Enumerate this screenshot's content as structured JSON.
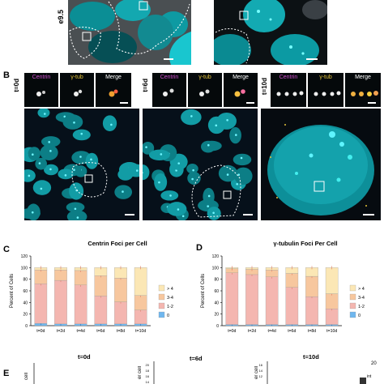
{
  "panelA": {
    "stage_label": "e9.5"
  },
  "panelB": {
    "label": "B",
    "rows": [
      {
        "time": "t=0d",
        "insets": [
          "Centrin",
          "γ-tub",
          "Merge"
        ]
      },
      {
        "time": "t=6d",
        "insets": [
          "Centrin",
          "γ-tub",
          "Merge"
        ]
      },
      {
        "time": "t=10d",
        "insets": [
          "Centrin",
          "γ-tub",
          "Merge"
        ]
      }
    ]
  },
  "colors": {
    "centrin": "#d24fd0",
    "gtub": "#e2c23a",
    "bin0": "#6fb7ee",
    "bin12": "#f4b6b0",
    "bin34": "#f7c79e",
    "bin4plus": "#fbe7b5",
    "nuclei": "#19c6cf"
  },
  "panelC": {
    "label": "C"
  },
  "panelD": {
    "label": "D"
  },
  "panelE": {
    "label": "E",
    "times": [
      "t=0d",
      "t=6d",
      "t=10d"
    ],
    "colorbar_max": "20",
    "colorbar_min": "int",
    "axis_partial": "er cell",
    "axis_partial2": "cell"
  },
  "chart_data": [
    {
      "type": "bar",
      "title": "Centrin Foci per Cell",
      "ylabel": "Percent of Cells",
      "ylim": [
        0,
        120
      ],
      "yticks": [
        "0",
        "20",
        "40",
        "60",
        "80",
        "100",
        "120"
      ],
      "categories": [
        "t=0d",
        "t=2d",
        "t=4d",
        "t=6d",
        "t=8d",
        "t=10d"
      ],
      "stacked": true,
      "legend": [
        "> 4",
        "3-4",
        "1-2",
        "0"
      ],
      "series": [
        {
          "name": "0",
          "values": [
            4,
            3,
            3,
            3,
            3,
            3
          ]
        },
        {
          "name": "1-2",
          "values": [
            68,
            75,
            67,
            48,
            38,
            24
          ]
        },
        {
          "name": "3-4",
          "values": [
            24,
            18,
            25,
            35,
            41,
            25
          ]
        },
        {
          "name": "> 4",
          "values": [
            4,
            4,
            5,
            14,
            18,
            48
          ]
        }
      ]
    },
    {
      "type": "bar",
      "title": "γ-tubulin Foci Per Cell",
      "ylabel": "Percent of Cells",
      "ylim": [
        0,
        120
      ],
      "yticks": [
        "0",
        "20",
        "40",
        "60",
        "80",
        "100",
        "120"
      ],
      "categories": [
        "t=0d",
        "t=2d",
        "t=4d",
        "t=6d",
        "t=8d",
        "t=10d"
      ],
      "stacked": true,
      "legend": [
        "> 4",
        "3-4",
        "1-2",
        "0"
      ],
      "series": [
        {
          "name": "0",
          "values": [
            2,
            2,
            2,
            2,
            2,
            2
          ]
        },
        {
          "name": "1-2",
          "values": [
            89,
            86,
            82,
            64,
            48,
            27
          ]
        },
        {
          "name": "3-4",
          "values": [
            7,
            9,
            12,
            24,
            35,
            26
          ]
        },
        {
          "name": "> 4",
          "values": [
            2,
            3,
            4,
            10,
            15,
            45
          ]
        }
      ]
    }
  ]
}
